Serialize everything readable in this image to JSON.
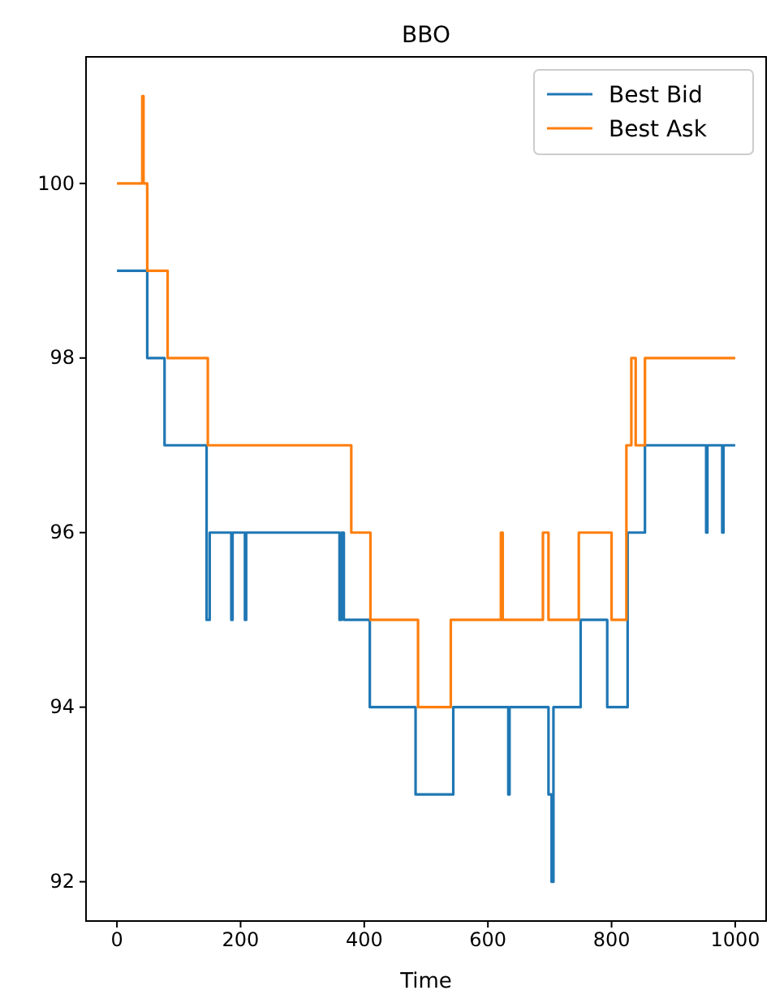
{
  "chart_data": {
    "type": "step",
    "title": "BBO",
    "xlabel": "Time",
    "xlim": [
      -50,
      1050
    ],
    "xticks": [
      0,
      200,
      400,
      600,
      800,
      1000
    ],
    "ylim": [
      91.55,
      101.45
    ],
    "yticks": [
      92,
      94,
      96,
      98,
      100
    ],
    "grid": false,
    "legend": "top right",
    "marker": "none",
    "line_style": "solid",
    "series": [
      {
        "name": "Best Bid",
        "color": "#1f77b4",
        "x": [
          0,
          49,
          77,
          145,
          150,
          185,
          187,
          207,
          209,
          360,
          363,
          367,
          409,
          483,
          544,
          633,
          635,
          698,
          703,
          706,
          750,
          793,
          826,
          854,
          953,
          955,
          979,
          981,
          1000
        ],
        "values": [
          99,
          98,
          97,
          95,
          96,
          95,
          96,
          95,
          96,
          95,
          96,
          95,
          94,
          93,
          94,
          93,
          94,
          93,
          92,
          94,
          95,
          94,
          96,
          97,
          96,
          97,
          96,
          97,
          97
        ]
      },
      {
        "name": "Best Ask",
        "color": "#ff7f0e",
        "x": [
          0,
          41,
          43,
          49,
          82,
          147,
          379,
          410,
          487,
          540,
          621,
          624,
          689,
          698,
          747,
          800,
          824,
          832,
          839,
          854,
          1000
        ],
        "values": [
          100,
          101,
          100,
          99,
          98,
          97,
          96,
          95,
          94,
          95,
          96,
          95,
          96,
          95,
          96,
          95,
          97,
          98,
          97,
          98,
          98
        ]
      }
    ]
  }
}
